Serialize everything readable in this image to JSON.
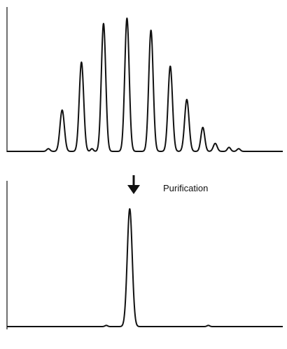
{
  "annotation": {
    "label": "Purification",
    "arrow_icon": "down-arrow-icon"
  },
  "chart_data": [
    {
      "type": "line",
      "panel": "top",
      "title": "",
      "xlabel": "",
      "ylabel": "",
      "baseline": 0,
      "ylim": [
        0,
        1
      ],
      "xlim": [
        0,
        100
      ],
      "peaks": [
        {
          "x": 15.0,
          "height": 0.02,
          "width": 0.6
        },
        {
          "x": 20.0,
          "height": 0.31,
          "width": 0.8
        },
        {
          "x": 27.0,
          "height": 0.67,
          "width": 0.8
        },
        {
          "x": 30.8,
          "height": 0.02,
          "width": 0.5
        },
        {
          "x": 35.0,
          "height": 0.96,
          "width": 0.8
        },
        {
          "x": 43.5,
          "height": 1.0,
          "width": 0.8
        },
        {
          "x": 52.2,
          "height": 0.91,
          "width": 0.8
        },
        {
          "x": 59.2,
          "height": 0.64,
          "width": 0.8
        },
        {
          "x": 65.2,
          "height": 0.39,
          "width": 0.8
        },
        {
          "x": 71.0,
          "height": 0.18,
          "width": 0.7
        },
        {
          "x": 75.5,
          "height": 0.06,
          "width": 0.7
        },
        {
          "x": 80.5,
          "height": 0.03,
          "width": 0.6
        },
        {
          "x": 84.0,
          "height": 0.02,
          "width": 0.6
        }
      ]
    },
    {
      "type": "line",
      "panel": "bottom",
      "title": "",
      "xlabel": "",
      "ylabel": "",
      "baseline": 0,
      "ylim": [
        0,
        1
      ],
      "xlim": [
        0,
        100
      ],
      "peaks": [
        {
          "x": 36.0,
          "height": 0.01,
          "width": 0.5
        },
        {
          "x": 44.5,
          "height": 1.0,
          "width": 0.9
        },
        {
          "x": 73.0,
          "height": 0.01,
          "width": 0.5
        }
      ]
    }
  ]
}
